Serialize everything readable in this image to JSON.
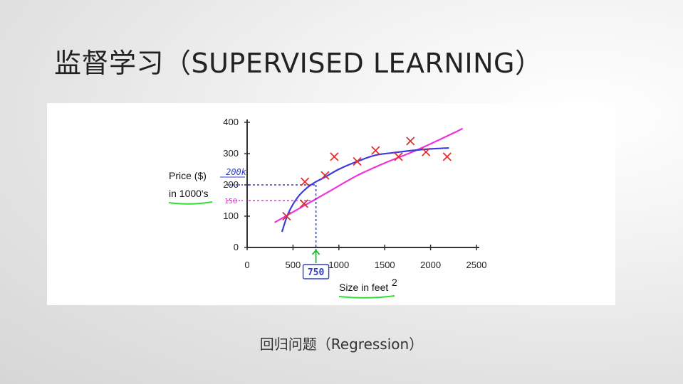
{
  "slide": {
    "title": "监督学习（SUPERVISED LEARNING）",
    "caption": "回归问题（Regression）"
  },
  "colors": {
    "title": "#222222",
    "data_marker": "#e0302e",
    "fit_curve": "#3a3ae0",
    "fit_line": "#ee33dd",
    "annotation_blue": "#2b3bd8",
    "annotation_green": "#1bbf2a",
    "underline_green": "#33dd33"
  },
  "chart_data": {
    "type": "scatter",
    "xlabel": "Size in feet",
    "xlabel_sup": "2",
    "ylabel_line1": "Price ($)",
    "ylabel_line2": "in 1000's",
    "xlim": [
      0,
      2500
    ],
    "ylim": [
      0,
      400
    ],
    "x_ticks": [
      "0",
      "500",
      "1000",
      "1500",
      "2000",
      "2500"
    ],
    "y_ticks": [
      "0",
      "100",
      "200",
      "300",
      "400"
    ],
    "series": [
      {
        "marker": "x",
        "x": [
          430,
          620,
          630,
          850,
          950,
          1200,
          1400,
          1650,
          1780,
          1950,
          2180
        ],
        "y": [
          100,
          140,
          210,
          230,
          290,
          275,
          310,
          290,
          340,
          305,
          290
        ]
      }
    ],
    "fit_curve": {
      "x": [
        380,
        450,
        550,
        650,
        750,
        850,
        1000,
        1200,
        1400,
        1600,
        1800,
        2000,
        2200
      ],
      "y": [
        50,
        110,
        160,
        190,
        210,
        225,
        250,
        275,
        295,
        303,
        310,
        315,
        318
      ]
    },
    "fit_line": {
      "x": [
        300,
        600,
        900,
        1200,
        1500,
        1800,
        2100,
        2350
      ],
      "y": [
        80,
        130,
        180,
        230,
        270,
        305,
        345,
        380
      ]
    },
    "annotations": {
      "curve_reading": "200k",
      "line_reading": "150",
      "query_size": "750"
    }
  }
}
